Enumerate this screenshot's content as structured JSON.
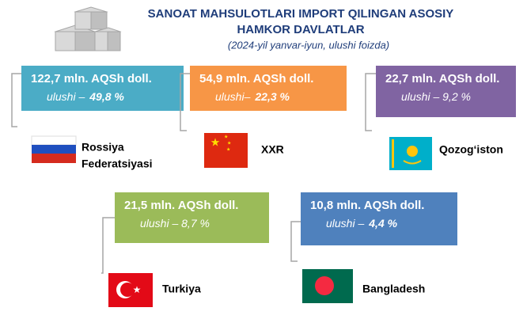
{
  "header": {
    "title_lines": [
      "SANOAT MAHSULOTLARI IMPORT QILINGAN ASOSIY",
      "HAMKOR DAVLATLAR"
    ],
    "subtitle": "(2024-yil yanvar-iyun, ulushi foizda)"
  },
  "partners": [
    {
      "amount": "122,7 mln. AQSh doll.",
      "share_label": "ulushi –",
      "share": "49,8 %",
      "country_lines": [
        "Rossiya",
        "Federatsiyasi"
      ]
    },
    {
      "amount": "54,9 mln. AQSh doll.",
      "share_label": "ulushi–",
      "share": "22,3 %",
      "country_lines": [
        "XXR"
      ]
    },
    {
      "amount": "22,7 mln. AQSh doll.",
      "share_label": "ulushi – 9,2 %",
      "share": "",
      "country_lines": [
        "Qozog‘iston"
      ]
    },
    {
      "amount": "21,5 mln. AQSh doll.",
      "share_label": "ulushi – 8,7 %",
      "share": "",
      "country_lines": [
        "Turkiya"
      ]
    },
    {
      "amount": "10,8 mln. AQSh doll.",
      "share_label": "ulushi –",
      "share": "4,4 %",
      "country_lines": [
        "Bangladesh"
      ]
    }
  ]
}
